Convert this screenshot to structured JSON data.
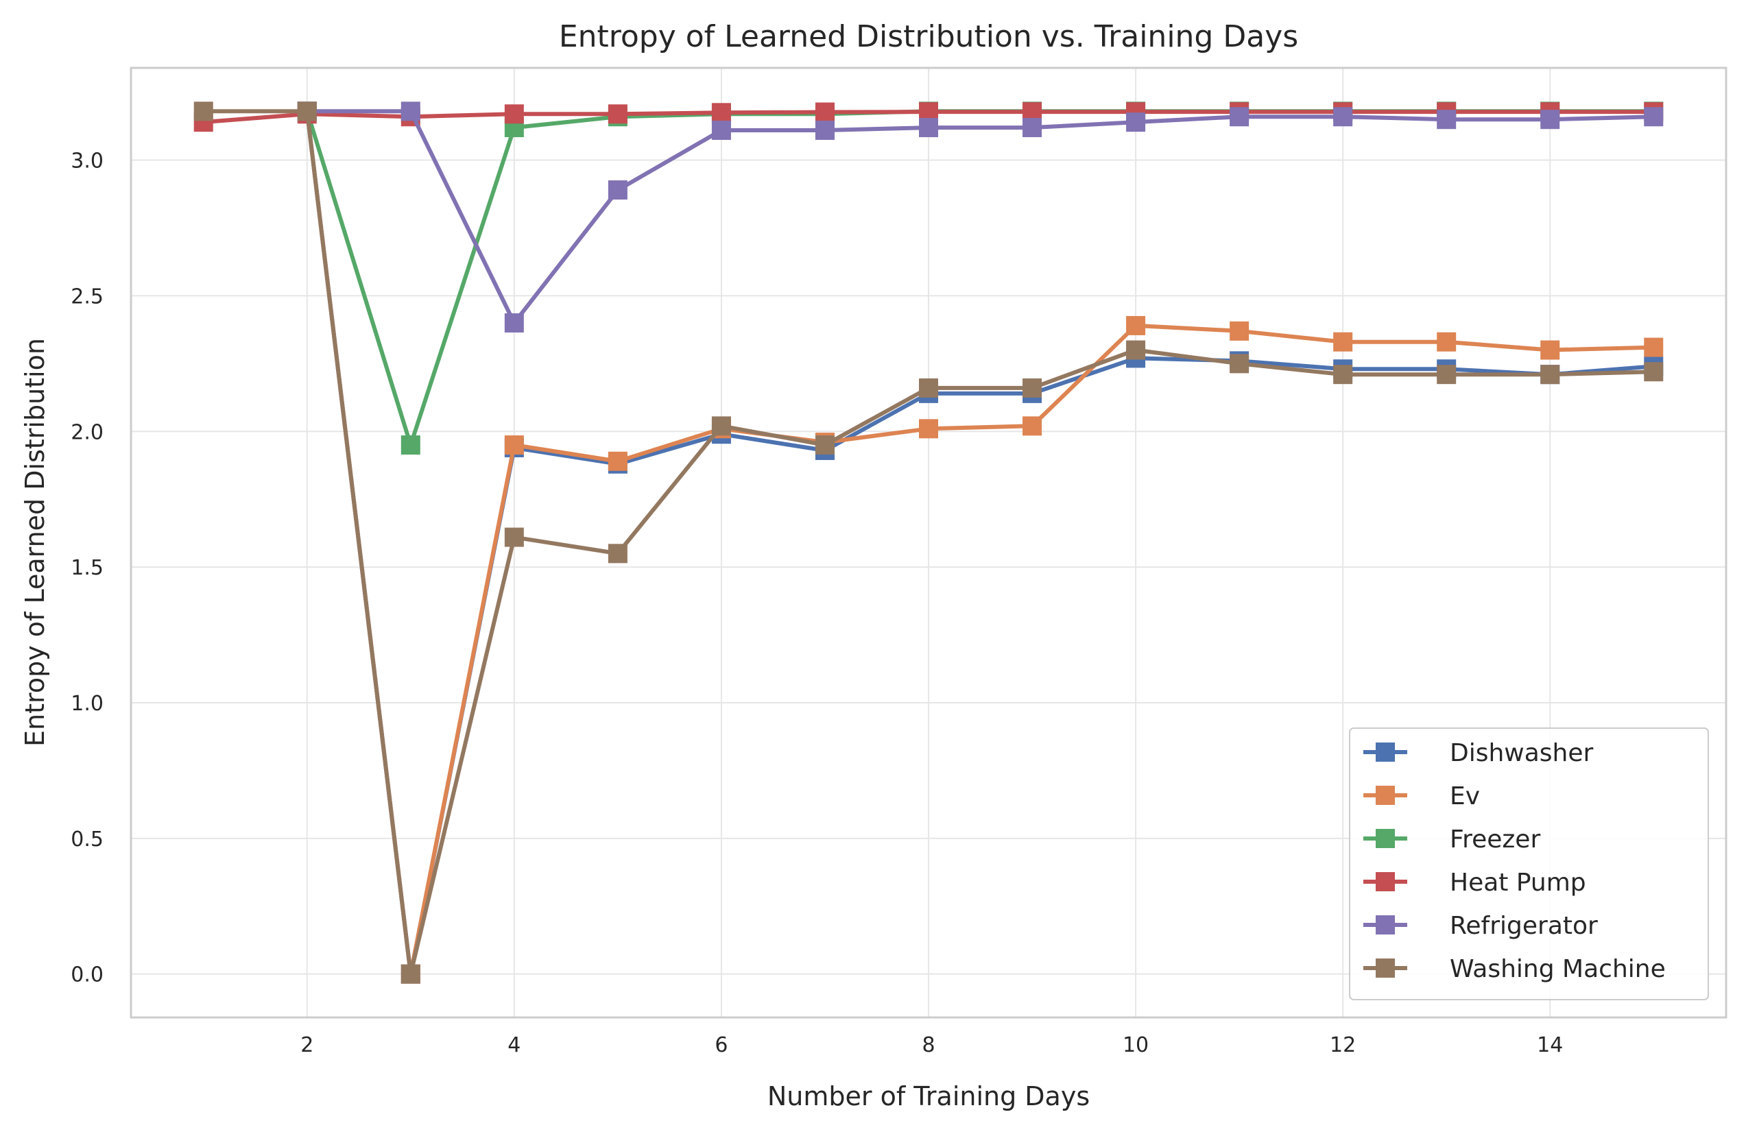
{
  "chart_data": {
    "type": "line",
    "title": "Entropy of Learned Distribution vs. Training Days",
    "xlabel": "Number of Training Days",
    "ylabel": "Entropy of Learned Distribution",
    "xlim": [
      0.3,
      15.7
    ],
    "ylim": [
      -0.16,
      3.34
    ],
    "xticks": [
      2,
      4,
      6,
      8,
      10,
      12,
      14
    ],
    "yticks": [
      0.0,
      0.5,
      1.0,
      1.5,
      2.0,
      2.5,
      3.0
    ],
    "xtick_labels": [
      "2",
      "4",
      "6",
      "8",
      "10",
      "12",
      "14"
    ],
    "ytick_labels": [
      "0.0",
      "0.5",
      "1.0",
      "1.5",
      "2.0",
      "2.5",
      "3.0"
    ],
    "grid": true,
    "legend_position": "lower-right",
    "marker": "square",
    "x": [
      1,
      2,
      3,
      4,
      5,
      6,
      7,
      8,
      9,
      10,
      11,
      12,
      13,
      14,
      15
    ],
    "series": [
      {
        "name": "Dishwasher",
        "color": "#4c72b0",
        "values": [
          null,
          3.18,
          0.0,
          1.94,
          1.88,
          1.99,
          1.93,
          2.14,
          2.14,
          2.27,
          2.26,
          2.23,
          2.23,
          2.21,
          2.24
        ]
      },
      {
        "name": "Ev",
        "color": "#dd8452",
        "values": [
          null,
          3.18,
          0.0,
          1.95,
          1.89,
          2.01,
          1.96,
          2.01,
          2.02,
          2.39,
          2.37,
          2.33,
          2.33,
          2.3,
          2.31
        ]
      },
      {
        "name": "Freezer",
        "color": "#55a868",
        "values": [
          null,
          3.18,
          1.95,
          3.12,
          3.16,
          3.17,
          3.17,
          3.18,
          3.18,
          3.18,
          3.18,
          3.18,
          3.18,
          3.18,
          3.18
        ]
      },
      {
        "name": "Heat Pump",
        "color": "#c44e52",
        "values": [
          3.14,
          3.17,
          3.16,
          3.17,
          3.17,
          3.175,
          3.177,
          3.178,
          3.178,
          3.178,
          3.178,
          3.178,
          3.178,
          3.178,
          3.178
        ]
      },
      {
        "name": "Refrigerator",
        "color": "#8172b3",
        "values": [
          null,
          3.18,
          3.18,
          2.4,
          2.89,
          3.11,
          3.11,
          3.12,
          3.12,
          3.14,
          3.16,
          3.16,
          3.15,
          3.15,
          3.16
        ]
      },
      {
        "name": "Washing Machine",
        "color": "#937860",
        "values": [
          3.18,
          3.18,
          0.0,
          1.61,
          1.55,
          2.02,
          1.95,
          2.16,
          2.16,
          2.3,
          2.25,
          2.21,
          2.21,
          2.21,
          2.22
        ]
      }
    ]
  }
}
